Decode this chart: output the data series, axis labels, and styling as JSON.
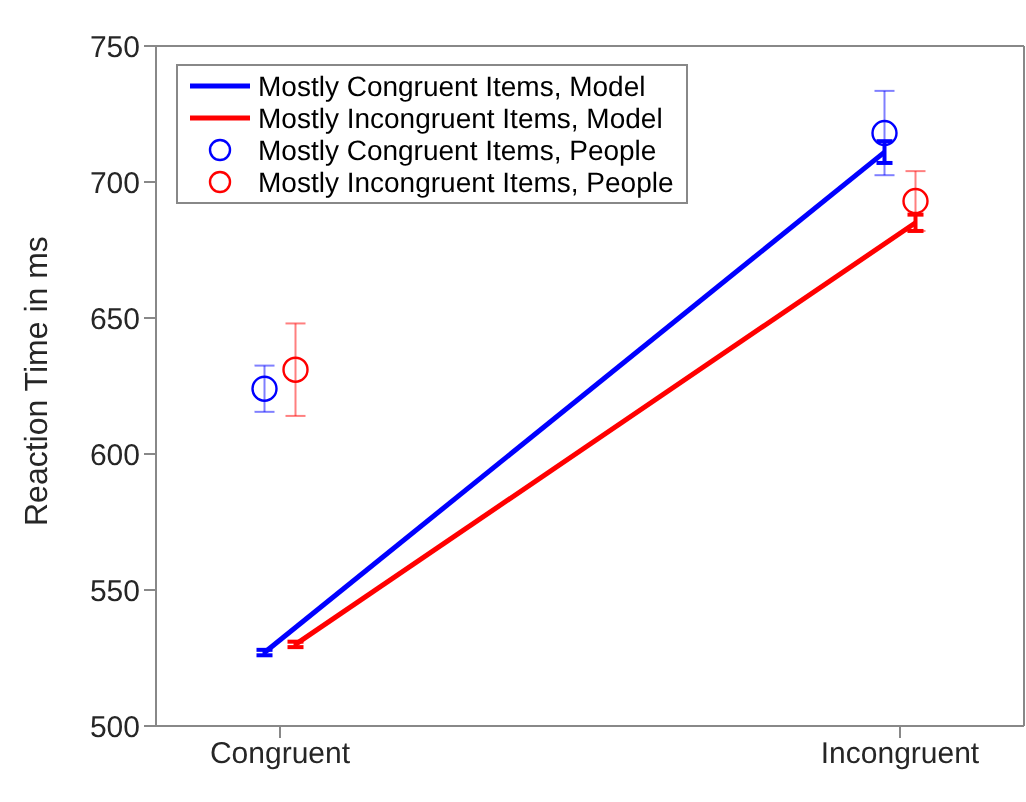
{
  "chart_data": {
    "type": "line",
    "ylabel": "Reaction Time in ms",
    "categories": [
      "Congruent",
      "Incongruent"
    ],
    "ylim": [
      500,
      750
    ],
    "yticks": [
      500,
      550,
      600,
      650,
      700,
      750
    ],
    "legend": "top left",
    "series": [
      {
        "name": "Mostly Congruent Items, Model",
        "color": "#0000ff",
        "marker": "none",
        "values": [
          527,
          711
        ],
        "errors": [
          1,
          4
        ]
      },
      {
        "name": "Mostly Incongruent Items, Model",
        "color": "#ff0000",
        "marker": "none",
        "values": [
          530,
          685
        ],
        "errors": [
          1,
          3
        ]
      },
      {
        "name": "Mostly Congruent Items, People",
        "type": "scatter",
        "color": "#0000ff",
        "marker": "circle",
        "values": [
          624,
          718
        ],
        "errors": [
          8.5,
          15.5
        ]
      },
      {
        "name": "Mostly Incongruent Items, People",
        "type": "scatter",
        "color": "#ff0000",
        "marker": "circle",
        "values": [
          631,
          693
        ],
        "errors": [
          17,
          11
        ]
      }
    ]
  }
}
